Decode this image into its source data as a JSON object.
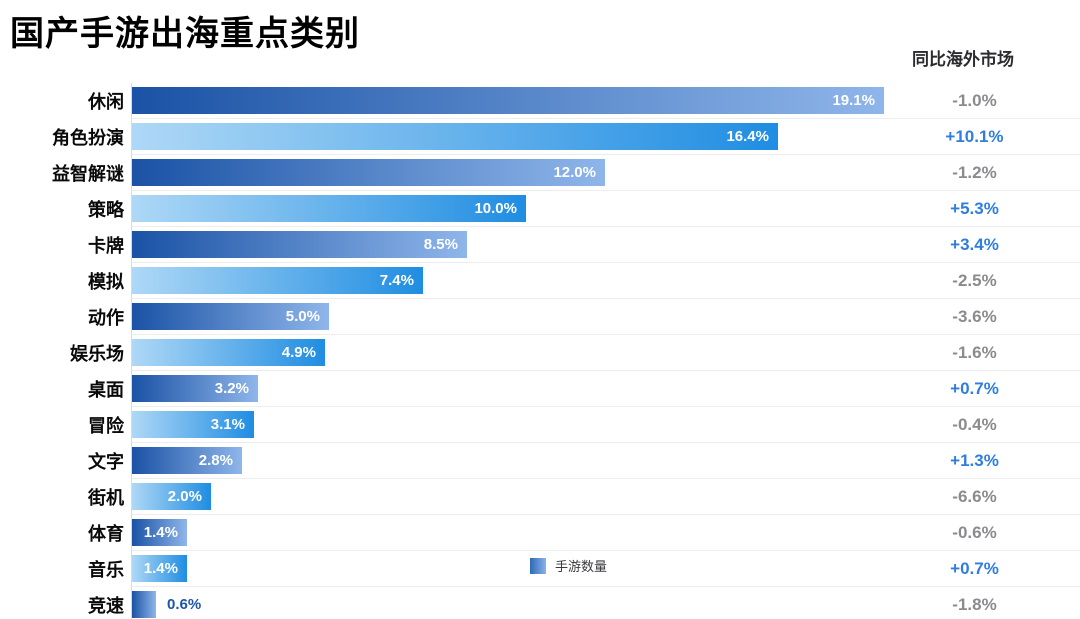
{
  "title": "国产手游出海重点类别",
  "right_column": {
    "header": "同比海外市场"
  },
  "legend": {
    "label": "手游数量"
  },
  "chart_data": {
    "type": "bar",
    "orientation": "horizontal",
    "title": "国产手游出海重点类别",
    "legend_entries": [
      "手游数量"
    ],
    "categories": [
      "休闲",
      "角色扮演",
      "益智解谜",
      "策略",
      "卡牌",
      "模拟",
      "动作",
      "娱乐场",
      "桌面",
      "冒险",
      "文字",
      "街机",
      "体育",
      "音乐",
      "竞速"
    ],
    "series": [
      {
        "name": "手游数量",
        "unit": "%",
        "values": [
          19.1,
          16.4,
          12.0,
          10.0,
          8.5,
          7.4,
          5.0,
          4.9,
          3.2,
          3.1,
          2.8,
          2.0,
          1.4,
          1.4,
          0.6
        ],
        "value_labels": [
          "19.1%",
          "16.4%",
          "12.0%",
          "10.0%",
          "8.5%",
          "7.4%",
          "5.0%",
          "4.9%",
          "3.2%",
          "3.1%",
          "2.8%",
          "2.0%",
          "1.4%",
          "1.4%",
          "0.6%"
        ]
      },
      {
        "name": "同比海外市场",
        "values": [
          "-1.0%",
          "+10.1%",
          "-1.2%",
          "+5.3%",
          "+3.4%",
          "-2.5%",
          "-3.6%",
          "-1.6%",
          "+0.7%",
          "-0.4%",
          "+1.3%",
          "-6.6%",
          "-0.6%",
          "+0.7%",
          "-1.8%"
        ]
      }
    ],
    "xlim": [
      0,
      19.65
    ],
    "grid": false,
    "legend_position": "bottom-center"
  },
  "colors": {
    "bar_dark_start": "#1a52a5",
    "bar_dark_end": "#8fb6ea",
    "bar_light_start": "#aed8f6",
    "bar_light_end": "#1f8de2",
    "positive_change": "#2e7de0",
    "negative_change": "#8b8b8f",
    "outside_value_label": "#1b55a8",
    "axis_line": "#d9d9de",
    "separator": "#ededef",
    "inside_value_label": "#ffffff",
    "title_text": "#000000",
    "category_text": "#0a0a0a"
  }
}
